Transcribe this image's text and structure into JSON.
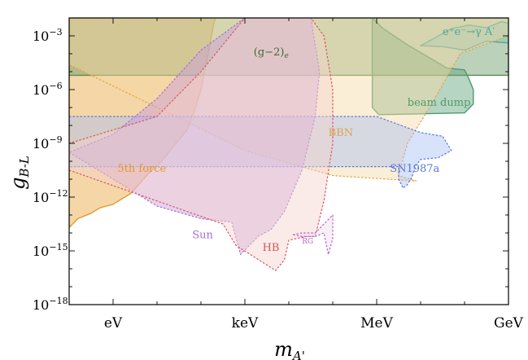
{
  "chart_data": {
    "type": "area",
    "title": "",
    "xlabel": "m_{A'}",
    "ylabel": "g_{B-L}",
    "x_scale": "log",
    "y_scale": "log",
    "xlim_eV": [
      0.1,
      1000000000
    ],
    "ylim": [
      1e-18,
      0.01
    ],
    "x_ticks": [
      {
        "value_eV": 1,
        "label": "eV"
      },
      {
        "value_eV": 1000,
        "label": "keV"
      },
      {
        "value_eV": 1000000,
        "label": "MeV"
      },
      {
        "value_eV": 1000000000,
        "label": "GeV"
      }
    ],
    "y_ticks": [
      {
        "exp": -3,
        "label_base": "10",
        "label_exp": "−3"
      },
      {
        "exp": -6,
        "label_base": "10",
        "label_exp": "−6"
      },
      {
        "exp": -9,
        "label_base": "10",
        "label_exp": "−9"
      },
      {
        "exp": -12,
        "label_base": "10",
        "label_exp": "−12"
      },
      {
        "exp": -15,
        "label_base": "10",
        "label_exp": "−15"
      },
      {
        "exp": -18,
        "label_base": "10",
        "label_exp": "−18"
      }
    ],
    "regions": [
      {
        "name": "5th force",
        "label": "5th force",
        "fill": "#e8a33a",
        "stroke": "#e09a2c",
        "dash": false,
        "label_pos": {
          "log10_eV": 0.1,
          "log10_g": -10.6
        },
        "boundary": [
          [
            -1,
            -13.7
          ],
          [
            -0.8,
            -13.2
          ],
          [
            -0.5,
            -12.9
          ],
          [
            -0.3,
            -12.6
          ],
          [
            0,
            -12.4
          ],
          [
            0.4,
            -11.8
          ],
          [
            0.8,
            -10.7
          ],
          [
            1.1,
            -10.0
          ],
          [
            1.4,
            -9.1
          ],
          [
            1.7,
            -8.2
          ],
          [
            1.85,
            -7.2
          ],
          [
            2.0,
            -6.0
          ],
          [
            2.1,
            -4.8
          ],
          [
            2.2,
            -3.5
          ],
          [
            2.3,
            -2.2
          ],
          [
            2.35,
            -2
          ],
          [
            -1,
            -2
          ]
        ]
      },
      {
        "name": "g-2 electron",
        "label": "(g−2)",
        "label_sub": "e",
        "fill": "#6a9a66",
        "stroke": "#5a8a56",
        "dash": false,
        "label_pos": {
          "log10_eV": 3.2,
          "log10_g": -4.1
        },
        "boundary": [
          [
            -1,
            -2
          ],
          [
            -1,
            -5.2
          ],
          [
            9,
            -5.2
          ],
          [
            9,
            -2
          ]
        ]
      },
      {
        "name": "beam dump",
        "label": "beam dump",
        "fill": "#5fa27a",
        "stroke": "#4f9a6c",
        "dash": false,
        "label_pos": {
          "log10_eV": 6.7,
          "log10_g": -6.9
        },
        "boundary": [
          [
            5.9,
            -2
          ],
          [
            6.15,
            -2.6
          ],
          [
            6.7,
            -3.5
          ],
          [
            7.6,
            -4.8
          ],
          [
            8.0,
            -4.9
          ],
          [
            8.1,
            -5.4
          ],
          [
            8.2,
            -6.0
          ],
          [
            8.2,
            -6.8
          ],
          [
            8.0,
            -7.3
          ],
          [
            6.05,
            -7.4
          ],
          [
            5.9,
            -7.0
          ]
        ]
      },
      {
        "name": "e+e- to gamma A'",
        "label": "e⁺e⁻→γ A′",
        "fill": "#7ec4b6",
        "stroke": "#4aa89b",
        "dash": false,
        "label_pos": {
          "log10_eV": 7.5,
          "log10_g": -2.95
        },
        "boundary": [
          [
            7.0,
            -3.55
          ],
          [
            7.3,
            -3.15
          ],
          [
            7.7,
            -2.6
          ],
          [
            8.1,
            -2.4
          ],
          [
            8.5,
            -2.55
          ],
          [
            8.85,
            -2.2
          ],
          [
            9,
            -2.3
          ],
          [
            9,
            -3.4
          ],
          [
            8.5,
            -3.3
          ],
          [
            8.0,
            -3.8
          ],
          [
            7.5,
            -3.6
          ]
        ]
      },
      {
        "name": "BBN",
        "label": "BBN",
        "fill": "#f6d9a4",
        "stroke": "#e0a44c",
        "dash": true,
        "label_pos": {
          "log10_eV": 4.9,
          "log10_g": -8.6
        },
        "boundary": [
          [
            -1,
            -2
          ],
          [
            9,
            -2
          ],
          [
            9,
            -3.0
          ],
          [
            7.9,
            -4.0
          ],
          [
            7.3,
            -6.6
          ],
          [
            6.7,
            -9.0
          ],
          [
            6.5,
            -10.8
          ],
          [
            6.9,
            -11.1
          ],
          [
            5.0,
            -10.8
          ],
          [
            3.0,
            -9.4
          ],
          [
            1.0,
            -7.0
          ],
          [
            -1,
            -4.6
          ]
        ]
      },
      {
        "name": "SN1987a",
        "label": "SN1987a",
        "fill": "#a9bff2",
        "stroke": "#5577dd",
        "dash": true,
        "label_pos": {
          "log10_eV": 6.3,
          "log10_g": -10.6
        },
        "boundary": [
          [
            -1,
            -7.5
          ],
          [
            5.2,
            -7.5
          ],
          [
            6.0,
            -7.5
          ],
          [
            7.0,
            -8.4
          ],
          [
            7.5,
            -8.6
          ],
          [
            7.7,
            -9.4
          ],
          [
            7.4,
            -9.8
          ],
          [
            7.0,
            -9.9
          ],
          [
            6.9,
            -10.2
          ],
          [
            6.8,
            -10.9
          ],
          [
            6.7,
            -11.3
          ],
          [
            6.6,
            -11.5
          ],
          [
            6.5,
            -11.0
          ],
          [
            6.5,
            -10.3
          ],
          [
            5.0,
            -10.3
          ],
          [
            -1,
            -10.3
          ]
        ]
      },
      {
        "name": "Sun",
        "label": "Sun",
        "fill": "#c89ae0",
        "stroke": "#a66fd0",
        "dash": true,
        "label_pos": {
          "log10_eV": 1.8,
          "log10_g": -14.3
        },
        "boundary": [
          [
            -1,
            -9.5
          ],
          [
            0,
            -11
          ],
          [
            1,
            -12.5
          ],
          [
            2,
            -13.2
          ],
          [
            2.7,
            -13.4
          ],
          [
            2.9,
            -15.2
          ],
          [
            3.3,
            -14.2
          ],
          [
            3.6,
            -13.8
          ],
          [
            3.9,
            -12.8
          ],
          [
            4.3,
            -10.5
          ],
          [
            4.6,
            -7.5
          ],
          [
            4.7,
            -5.0
          ],
          [
            4.5,
            -2
          ],
          [
            3.0,
            -2
          ],
          [
            2.0,
            -3.8
          ],
          [
            1.0,
            -6.5
          ],
          [
            0,
            -8.5
          ]
        ]
      },
      {
        "name": "HB",
        "label": "HB",
        "fill": "#f3d2cd",
        "stroke": "#d8555e",
        "dash": true,
        "label_pos": {
          "log10_eV": 3.4,
          "log10_g": -15.0
        },
        "boundary": [
          [
            -1,
            -10.5
          ],
          [
            2.5,
            -13.5
          ],
          [
            2.8,
            -14.7
          ],
          [
            3.7,
            -16.1
          ],
          [
            3.9,
            -15.5
          ],
          [
            4.0,
            -14.4
          ],
          [
            4.4,
            -14.2
          ],
          [
            4.6,
            -14.2
          ],
          [
            4.8,
            -12.2
          ],
          [
            5.0,
            -9.0
          ],
          [
            5.0,
            -6.0
          ],
          [
            4.8,
            -3.0
          ],
          [
            4.5,
            -2
          ],
          [
            3.0,
            -2
          ],
          [
            2.0,
            -5.0
          ],
          [
            1.0,
            -7.5
          ],
          [
            -1,
            -9.0
          ]
        ]
      },
      {
        "name": "RG",
        "label": "RG",
        "fill": "#f0ddf0",
        "stroke": "#b266cc",
        "dash": true,
        "label_pos": {
          "log10_eV": 4.3,
          "log10_g": -14.6
        },
        "boundary": [
          [
            4.1,
            -14.1
          ],
          [
            4.3,
            -14.2
          ],
          [
            4.6,
            -14.2
          ],
          [
            4.8,
            -14.0
          ],
          [
            4.9,
            -15.2
          ],
          [
            5.0,
            -14.3
          ],
          [
            5.0,
            -13.0
          ],
          [
            4.6,
            -14.0
          ],
          [
            4.3,
            -14.0
          ]
        ]
      }
    ]
  }
}
